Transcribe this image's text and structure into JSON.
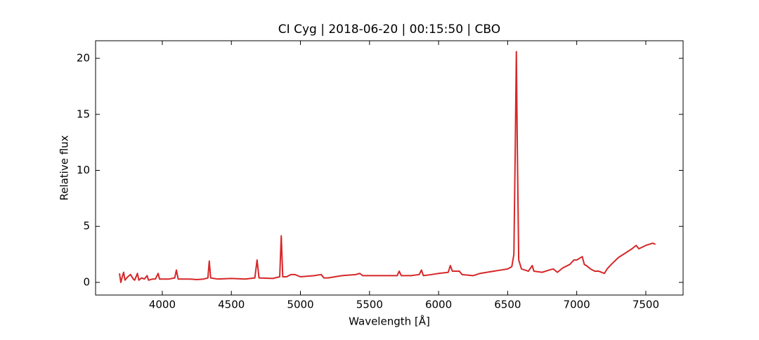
{
  "chart_data": {
    "type": "line",
    "title": "CI Cyg | 2018-06-20 | 00:15:50 | CBO",
    "x_label": "Wavelength [Å]",
    "y_label": "Relative flux",
    "xlim": [
      3517,
      7770
    ],
    "ylim": [
      -1.13,
      21.57
    ],
    "xticks": [
      4000,
      4500,
      5000,
      5500,
      6000,
      6500,
      7000,
      7500
    ],
    "yticks": [
      0,
      5,
      10,
      15,
      20
    ],
    "series": [
      {
        "color": "#d62728",
        "x": [
          3690,
          3700,
          3710,
          3720,
          3730,
          3750,
          3770,
          3790,
          3800,
          3820,
          3830,
          3850,
          3870,
          3890,
          3900,
          3930,
          3950,
          3970,
          3980,
          4000,
          4050,
          4090,
          4102,
          4115,
          4200,
          4250,
          4300,
          4330,
          4340,
          4350,
          4400,
          4500,
          4600,
          4670,
          4686,
          4700,
          4800,
          4850,
          4861,
          4872,
          4900,
          4930,
          4960,
          5000,
          5100,
          5150,
          5170,
          5200,
          5300,
          5400,
          5430,
          5450,
          5500,
          5600,
          5700,
          5715,
          5730,
          5800,
          5860,
          5876,
          5890,
          5950,
          6000,
          6070,
          6085,
          6100,
          6150,
          6170,
          6250,
          6300,
          6400,
          6450,
          6500,
          6530,
          6545,
          6555,
          6563,
          6570,
          6580,
          6600,
          6650,
          6678,
          6690,
          6750,
          6800,
          6830,
          6860,
          6900,
          6950,
          6980,
          7000,
          7040,
          7055,
          7070,
          7100,
          7130,
          7160,
          7200,
          7220,
          7250,
          7300,
          7350,
          7400,
          7430,
          7450,
          7500,
          7550,
          7570
        ],
        "values": [
          0.8,
          0.0,
          0.5,
          0.9,
          0.2,
          0.5,
          0.7,
          0.3,
          0.2,
          0.8,
          0.2,
          0.4,
          0.3,
          0.6,
          0.2,
          0.3,
          0.3,
          0.8,
          0.3,
          0.3,
          0.3,
          0.4,
          1.1,
          0.3,
          0.3,
          0.25,
          0.3,
          0.4,
          1.9,
          0.4,
          0.3,
          0.35,
          0.3,
          0.4,
          2.0,
          0.4,
          0.35,
          0.5,
          4.15,
          0.5,
          0.5,
          0.7,
          0.7,
          0.5,
          0.6,
          0.7,
          0.4,
          0.4,
          0.6,
          0.7,
          0.8,
          0.6,
          0.6,
          0.6,
          0.6,
          1.0,
          0.6,
          0.6,
          0.7,
          1.1,
          0.6,
          0.7,
          0.8,
          0.9,
          1.5,
          1.0,
          1.0,
          0.7,
          0.6,
          0.8,
          1.0,
          1.1,
          1.2,
          1.4,
          2.5,
          12.0,
          20.6,
          12.0,
          2.0,
          1.2,
          1.0,
          1.5,
          1.0,
          0.9,
          1.1,
          1.2,
          0.9,
          1.3,
          1.6,
          2.0,
          2.0,
          2.3,
          1.6,
          1.5,
          1.2,
          1.0,
          1.0,
          0.8,
          1.2,
          1.6,
          2.2,
          2.6,
          3.0,
          3.3,
          3.0,
          3.3,
          3.5,
          3.4
        ]
      }
    ]
  }
}
